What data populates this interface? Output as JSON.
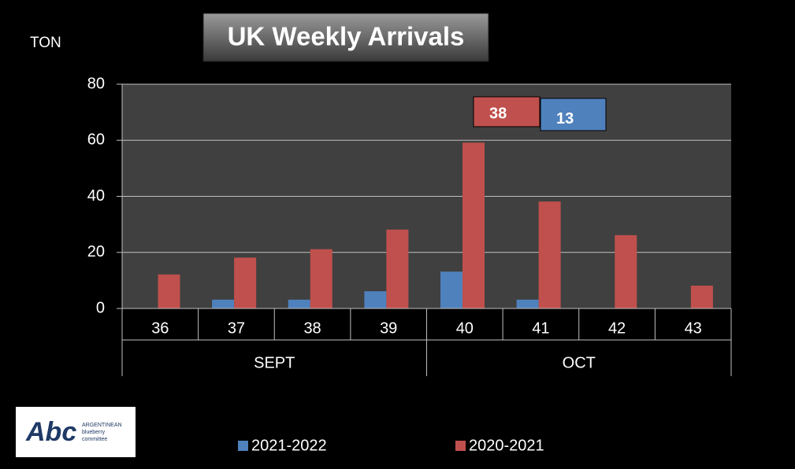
{
  "chart_data": {
    "type": "bar",
    "title": "UK  Weekly Arrivals",
    "y_label": "TON",
    "categories": [
      "36",
      "37",
      "38",
      "39",
      "40",
      "41",
      "42",
      "43"
    ],
    "x_groups": [
      "SEPT",
      "OCT"
    ],
    "series": [
      {
        "name": "2021-2022",
        "color": "#4f81bd",
        "values": [
          null,
          3,
          3,
          6,
          13,
          3,
          null,
          null
        ]
      },
      {
        "name": "2020-2021",
        "color": "#c0504d",
        "values": [
          12,
          18,
          21,
          28,
          59,
          38,
          26,
          8
        ]
      }
    ],
    "annotations": [
      {
        "text": "38",
        "color": "#c0504d"
      },
      {
        "text": "13",
        "color": "#4f81bd"
      }
    ],
    "ylim": [
      0,
      80
    ],
    "yticks": [
      0,
      20,
      40,
      60,
      80
    ],
    "grid": true,
    "logo": {
      "mark": "Abc",
      "lines": [
        "ARGENTINEAN",
        "blueberry",
        "committee"
      ]
    }
  }
}
